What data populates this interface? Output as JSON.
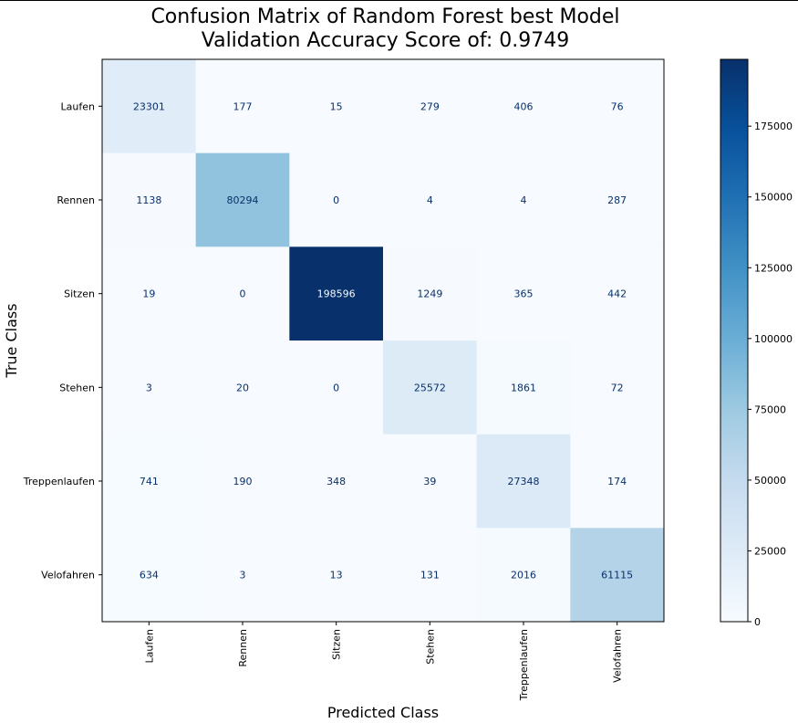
{
  "title_line1": "Confusion Matrix of Random Forest best Model",
  "title_line2": "Validation Accuracy Score of: 0.9749",
  "chart_data": {
    "type": "heatmap",
    "title": "Confusion Matrix of Random Forest best Model\nValidation Accuracy Score of: 0.9749",
    "xlabel": "Predicted Class",
    "ylabel": "True Class",
    "rows": [
      "Laufen",
      "Rennen",
      "Sitzen",
      "Stehen",
      "Treppenlaufen",
      "Velofahren"
    ],
    "columns": [
      "Laufen",
      "Rennen",
      "Sitzen",
      "Stehen",
      "Treppenlaufen",
      "Velofahren"
    ],
    "values": [
      [
        23301,
        177,
        15,
        279,
        406,
        76
      ],
      [
        1138,
        80294,
        0,
        4,
        4,
        287
      ],
      [
        19,
        0,
        198596,
        1249,
        365,
        442
      ],
      [
        3,
        20,
        0,
        25572,
        1861,
        72
      ],
      [
        741,
        190,
        348,
        39,
        27348,
        174
      ],
      [
        634,
        3,
        13,
        131,
        2016,
        61115
      ]
    ],
    "colormap": "Blues",
    "colorbar": {
      "range": [
        0,
        198596
      ],
      "ticks": [
        0,
        25000,
        50000,
        75000,
        100000,
        125000,
        150000,
        175000
      ]
    }
  }
}
